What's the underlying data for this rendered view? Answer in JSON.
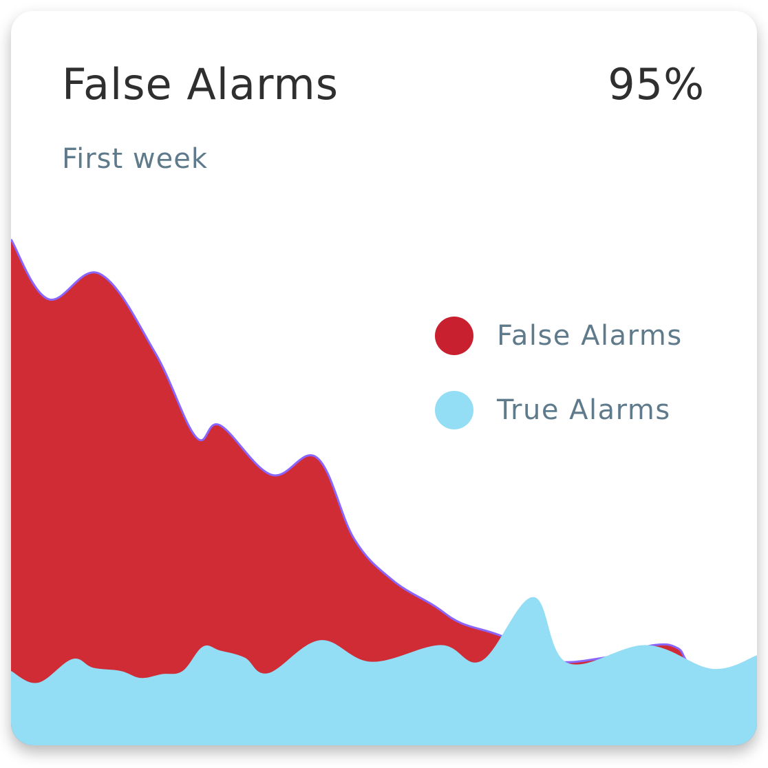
{
  "card": {
    "title": "False Alarms",
    "value": "95%",
    "subtitle": "First week"
  },
  "chart_data": {
    "type": "area",
    "title": "False Alarms",
    "subtitle": "First week",
    "xlim": [
      0,
      100
    ],
    "ylim": [
      0,
      100
    ],
    "grid": false,
    "axes_visible": false,
    "legend_placement": "right",
    "series": [
      {
        "name": "False Alarms",
        "color": "#cf2c36",
        "stroke": "#8a66ff",
        "x": [
          0,
          5.0,
          11.9,
          19.3,
          24.8,
          28.0,
          34.9,
          41.0,
          46.0,
          51.1,
          56.6,
          60.3,
          65.9,
          72.3,
          79.7,
          86.2,
          89.4,
          91.7,
          100
        ],
        "values": [
          93.9,
          82.8,
          87.5,
          72.9,
          57.2,
          59.4,
          50.2,
          53.4,
          38.3,
          30.7,
          26.0,
          22.7,
          20.2,
          15.7,
          16.3,
          18.6,
          18.0,
          14.7,
          12.5
        ]
      },
      {
        "name": "True Alarms",
        "color": "#93ddf5",
        "x": [
          0,
          3.6,
          8.2,
          11.0,
          14.7,
          17.4,
          20.2,
          23.0,
          25.7,
          28.0,
          31.3,
          34.5,
          41.4,
          48.3,
          57.6,
          63.1,
          70.0,
          74.6,
          85.2,
          94.0,
          100
        ],
        "values": [
          13.8,
          11.6,
          16.0,
          14.4,
          13.8,
          12.5,
          13.2,
          13.8,
          18.3,
          17.6,
          16.3,
          13.4,
          19.5,
          15.5,
          18.6,
          15.7,
          27.5,
          15.3,
          18.6,
          14.2,
          16.7
        ]
      }
    ]
  },
  "legend": [
    {
      "label": "False Alarms",
      "color": "#c8202e"
    },
    {
      "label": "True Alarms",
      "color": "#93ddf5"
    }
  ]
}
